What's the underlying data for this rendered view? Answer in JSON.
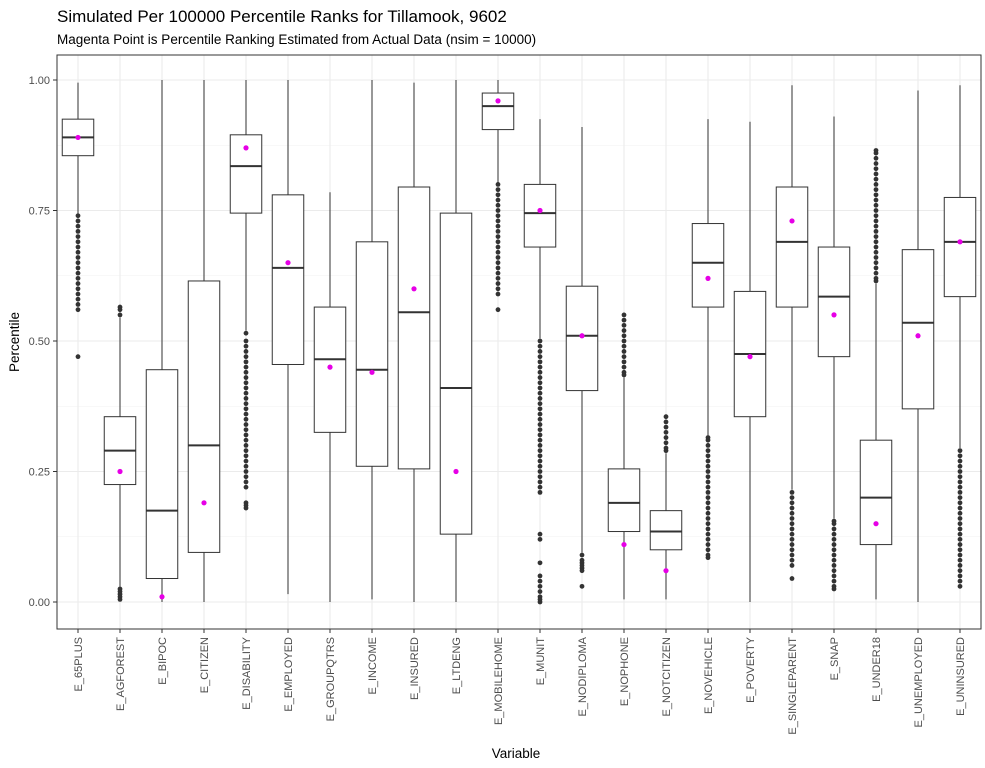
{
  "chart_data": {
    "type": "boxplot",
    "title": "Simulated Per 100000 Percentile Ranks for Tillamook, 9602",
    "subtitle": "Magenta Point is Percentile Ranking Estimated from Actual Data (nsim = 10000)",
    "xlabel": "Variable",
    "ylabel": "Percentile",
    "ylim": [
      -0.05,
      1.05
    ],
    "yticks": [
      0.0,
      0.25,
      0.5,
      0.75,
      1.0
    ],
    "ytick_labels": [
      "0.00",
      "0.25",
      "0.50",
      "0.75",
      "1.00"
    ],
    "grid": true,
    "colors": {
      "box": "#333333",
      "point": "#e600e6",
      "outlier": "#333333",
      "grid": "#ebebeb",
      "panel_border": "#333333"
    },
    "categories": [
      "E_65PLUS",
      "E_AGFOREST",
      "E_BIPOC",
      "E_CITIZEN",
      "E_DISABILITY",
      "E_EMPLOYED",
      "E_GROUPQTRS",
      "E_INCOME",
      "E_INSURED",
      "E_LTDENG",
      "E_MOBILEHOME",
      "E_MUNIT",
      "E_NODIPLOMA",
      "E_NOPHONE",
      "E_NOTCITIZEN",
      "E_NOVEHICLE",
      "E_POVERTY",
      "E_SINGLEPARENT",
      "E_SNAP",
      "E_UNDER18",
      "E_UNEMPLOYED",
      "E_UNINSURED"
    ],
    "boxes": [
      {
        "min": 0.74,
        "q1": 0.855,
        "median": 0.89,
        "q3": 0.925,
        "max": 0.995,
        "outliers": [
          0.74,
          0.73,
          0.72,
          0.71,
          0.7,
          0.69,
          0.68,
          0.67,
          0.66,
          0.65,
          0.64,
          0.63,
          0.62,
          0.61,
          0.6,
          0.59,
          0.58,
          0.57,
          0.56,
          0.47
        ]
      },
      {
        "min": 0.03,
        "q1": 0.225,
        "median": 0.29,
        "q3": 0.355,
        "max": 0.545,
        "outliers": [
          0.565,
          0.56,
          0.55,
          0.025,
          0.02,
          0.015,
          0.01,
          0.005
        ]
      },
      {
        "min": 0.0,
        "q1": 0.045,
        "median": 0.175,
        "q3": 0.445,
        "max": 1.0,
        "outliers": []
      },
      {
        "min": 0.0,
        "q1": 0.095,
        "median": 0.3,
        "q3": 0.615,
        "max": 1.0,
        "outliers": []
      },
      {
        "min": 0.52,
        "q1": 0.745,
        "median": 0.835,
        "q3": 0.895,
        "max": 1.0,
        "outliers": [
          0.515,
          0.5,
          0.49,
          0.48,
          0.47,
          0.46,
          0.45,
          0.44,
          0.43,
          0.42,
          0.41,
          0.4,
          0.39,
          0.38,
          0.37,
          0.36,
          0.35,
          0.34,
          0.33,
          0.32,
          0.31,
          0.3,
          0.29,
          0.28,
          0.27,
          0.26,
          0.25,
          0.24,
          0.23,
          0.22,
          0.19,
          0.185,
          0.18
        ]
      },
      {
        "min": 0.015,
        "q1": 0.455,
        "median": 0.64,
        "q3": 0.78,
        "max": 1.0,
        "outliers": []
      },
      {
        "min": 0.0,
        "q1": 0.325,
        "median": 0.465,
        "q3": 0.565,
        "max": 0.785,
        "outliers": []
      },
      {
        "min": 0.005,
        "q1": 0.26,
        "median": 0.445,
        "q3": 0.69,
        "max": 1.0,
        "outliers": []
      },
      {
        "min": 0.0,
        "q1": 0.255,
        "median": 0.555,
        "q3": 0.795,
        "max": 0.995,
        "outliers": []
      },
      {
        "min": 0.0,
        "q1": 0.13,
        "median": 0.41,
        "q3": 0.745,
        "max": 1.0,
        "outliers": []
      },
      {
        "min": 0.8,
        "q1": 0.905,
        "median": 0.95,
        "q3": 0.975,
        "max": 1.0,
        "outliers": [
          0.8,
          0.79,
          0.78,
          0.77,
          0.76,
          0.75,
          0.74,
          0.73,
          0.72,
          0.71,
          0.7,
          0.69,
          0.68,
          0.67,
          0.66,
          0.65,
          0.64,
          0.63,
          0.62,
          0.61,
          0.6,
          0.59,
          0.56
        ]
      },
      {
        "min": 0.505,
        "q1": 0.68,
        "median": 0.745,
        "q3": 0.8,
        "max": 0.925,
        "outliers": [
          0.5,
          0.49,
          0.48,
          0.47,
          0.46,
          0.45,
          0.44,
          0.43,
          0.42,
          0.41,
          0.4,
          0.39,
          0.38,
          0.37,
          0.36,
          0.35,
          0.34,
          0.33,
          0.32,
          0.31,
          0.3,
          0.29,
          0.28,
          0.27,
          0.26,
          0.25,
          0.24,
          0.23,
          0.22,
          0.21,
          0.13,
          0.12,
          0.075,
          0.05,
          0.04,
          0.03,
          0.02,
          0.01,
          0.005,
          0.0
        ]
      },
      {
        "min": 0.095,
        "q1": 0.405,
        "median": 0.51,
        "q3": 0.605,
        "max": 0.91,
        "outliers": [
          0.09,
          0.08,
          0.075,
          0.07,
          0.065,
          0.06,
          0.03
        ]
      },
      {
        "min": 0.005,
        "q1": 0.135,
        "median": 0.19,
        "q3": 0.255,
        "max": 0.43,
        "outliers": [
          0.55,
          0.54,
          0.53,
          0.52,
          0.51,
          0.5,
          0.49,
          0.48,
          0.47,
          0.46,
          0.45,
          0.44,
          0.435
        ]
      },
      {
        "min": 0.005,
        "q1": 0.1,
        "median": 0.135,
        "q3": 0.175,
        "max": 0.285,
        "outliers": [
          0.355,
          0.345,
          0.335,
          0.325,
          0.315,
          0.305,
          0.295,
          0.29
        ]
      },
      {
        "min": 0.32,
        "q1": 0.565,
        "median": 0.65,
        "q3": 0.725,
        "max": 0.925,
        "outliers": [
          0.315,
          0.31,
          0.3,
          0.29,
          0.28,
          0.27,
          0.26,
          0.25,
          0.24,
          0.23,
          0.22,
          0.21,
          0.2,
          0.19,
          0.18,
          0.17,
          0.16,
          0.15,
          0.14,
          0.13,
          0.12,
          0.11,
          0.1,
          0.09,
          0.085
        ]
      },
      {
        "min": 0.0,
        "q1": 0.355,
        "median": 0.475,
        "q3": 0.595,
        "max": 0.92,
        "outliers": []
      },
      {
        "min": 0.215,
        "q1": 0.565,
        "median": 0.69,
        "q3": 0.795,
        "max": 0.99,
        "outliers": [
          0.21,
          0.2,
          0.19,
          0.18,
          0.17,
          0.16,
          0.15,
          0.14,
          0.13,
          0.12,
          0.11,
          0.1,
          0.09,
          0.08,
          0.07,
          0.045
        ]
      },
      {
        "min": 0.16,
        "q1": 0.47,
        "median": 0.585,
        "q3": 0.68,
        "max": 0.93,
        "outliers": [
          0.155,
          0.15,
          0.14,
          0.13,
          0.12,
          0.11,
          0.1,
          0.09,
          0.08,
          0.07,
          0.06,
          0.05,
          0.04,
          0.03,
          0.025
        ]
      },
      {
        "min": 0.005,
        "q1": 0.11,
        "median": 0.2,
        "q3": 0.31,
        "max": 0.61,
        "outliers": [
          0.865,
          0.86,
          0.85,
          0.84,
          0.83,
          0.82,
          0.81,
          0.8,
          0.79,
          0.78,
          0.77,
          0.76,
          0.75,
          0.74,
          0.73,
          0.72,
          0.71,
          0.7,
          0.69,
          0.68,
          0.67,
          0.66,
          0.65,
          0.64,
          0.63,
          0.62,
          0.615
        ]
      },
      {
        "min": 0.0,
        "q1": 0.37,
        "median": 0.535,
        "q3": 0.675,
        "max": 0.98,
        "outliers": []
      },
      {
        "min": 0.295,
        "q1": 0.585,
        "median": 0.69,
        "q3": 0.775,
        "max": 0.99,
        "outliers": [
          0.29,
          0.28,
          0.27,
          0.26,
          0.25,
          0.24,
          0.23,
          0.22,
          0.21,
          0.2,
          0.19,
          0.18,
          0.17,
          0.16,
          0.15,
          0.14,
          0.13,
          0.12,
          0.11,
          0.1,
          0.09,
          0.08,
          0.07,
          0.06,
          0.05,
          0.04,
          0.03
        ]
      }
    ],
    "actual_points": [
      0.89,
      0.25,
      0.01,
      0.19,
      0.87,
      0.65,
      0.45,
      0.44,
      0.6,
      0.25,
      0.96,
      0.75,
      0.51,
      0.11,
      0.06,
      0.62,
      0.47,
      0.73,
      0.55,
      0.15,
      0.51,
      0.69
    ]
  }
}
